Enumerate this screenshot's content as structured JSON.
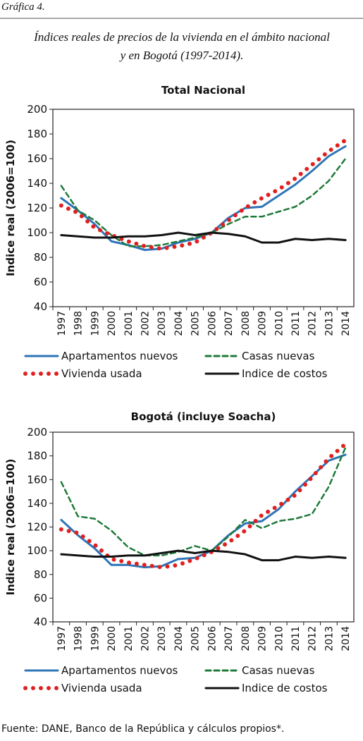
{
  "label": "Gráfica 4.",
  "caption": [
    "Índices reales de precios de la vivienda en el ámbito nacional",
    "y en Bogotá (1997-2014)."
  ],
  "chart_data": [
    {
      "type": "line",
      "title": "Total Nacional",
      "y_label": "Indice real (2006=100)",
      "categories": [
        "1997",
        "1998",
        "1999",
        "2000",
        "2001",
        "2002",
        "2003",
        "2004",
        "2005",
        "2006",
        "2007",
        "2008",
        "2009",
        "2010",
        "2011",
        "2012",
        "2013",
        "2014"
      ],
      "ylim": [
        40,
        200
      ],
      "yticks": [
        40,
        60,
        80,
        100,
        120,
        140,
        160,
        180,
        200
      ],
      "series": [
        {
          "name": "Apartamentos nuevos",
          "color": "#2e75b6",
          "style": "solid",
          "values": [
            128,
            118,
            107,
            93,
            90,
            86,
            87,
            92,
            95,
            100,
            112,
            120,
            121,
            130,
            139,
            150,
            162,
            170
          ]
        },
        {
          "name": "Casas nuevas",
          "color": "#1e7a3a",
          "style": "dashed",
          "values": [
            138,
            118,
            110,
            98,
            89,
            89,
            90,
            93,
            96,
            100,
            107,
            113,
            113,
            117,
            121,
            130,
            142,
            160
          ]
        },
        {
          "name": "Vivienda usada",
          "color": "#e02020",
          "style": "dotted",
          "values": [
            122,
            116,
            104,
            98,
            93,
            89,
            87,
            89,
            92,
            100,
            110,
            120,
            128,
            135,
            144,
            155,
            166,
            175
          ]
        },
        {
          "name": "Indice de costos",
          "color": "#111111",
          "style": "solid",
          "values": [
            98,
            97,
            96,
            96,
            97,
            97,
            98,
            100,
            98,
            100,
            99,
            97,
            92,
            92,
            95,
            94,
            95,
            94
          ]
        }
      ]
    },
    {
      "type": "line",
      "title": "Bogotá (incluye Soacha)",
      "y_label": "Indice real (2006=100)",
      "categories": [
        "1997",
        "1998",
        "1999",
        "2000",
        "2001",
        "2002",
        "2003",
        "2004",
        "2005",
        "2006",
        "2007",
        "2008",
        "2009",
        "2010",
        "2011",
        "2012",
        "2013",
        "2014"
      ],
      "ylim": [
        40,
        200
      ],
      "yticks": [
        40,
        60,
        80,
        100,
        120,
        140,
        160,
        180,
        200
      ],
      "series": [
        {
          "name": "Apartamentos nuevos",
          "color": "#2e75b6",
          "style": "solid",
          "values": [
            126,
            113,
            102,
            88,
            88,
            86,
            87,
            93,
            94,
            100,
            113,
            123,
            125,
            135,
            150,
            163,
            176,
            181
          ]
        },
        {
          "name": "Casas nuevas",
          "color": "#1e7a3a",
          "style": "dashed",
          "values": [
            158,
            129,
            127,
            117,
            103,
            96,
            96,
            99,
            104,
            100,
            112,
            126,
            119,
            125,
            127,
            131,
            154,
            187
          ]
        },
        {
          "name": "Vivienda usada",
          "color": "#e02020",
          "style": "dotted",
          "values": [
            118,
            115,
            105,
            93,
            90,
            88,
            86,
            88,
            93,
            99,
            107,
            117,
            130,
            138,
            147,
            162,
            178,
            190
          ]
        },
        {
          "name": "Indice de costos",
          "color": "#111111",
          "style": "solid",
          "values": [
            97,
            96,
            95,
            95,
            96,
            96,
            98,
            100,
            98,
            100,
            99,
            97,
            92,
            92,
            95,
            94,
            95,
            94
          ]
        }
      ]
    }
  ],
  "source": "Fuente: DANE, Banco de la República y cálculos propios*."
}
